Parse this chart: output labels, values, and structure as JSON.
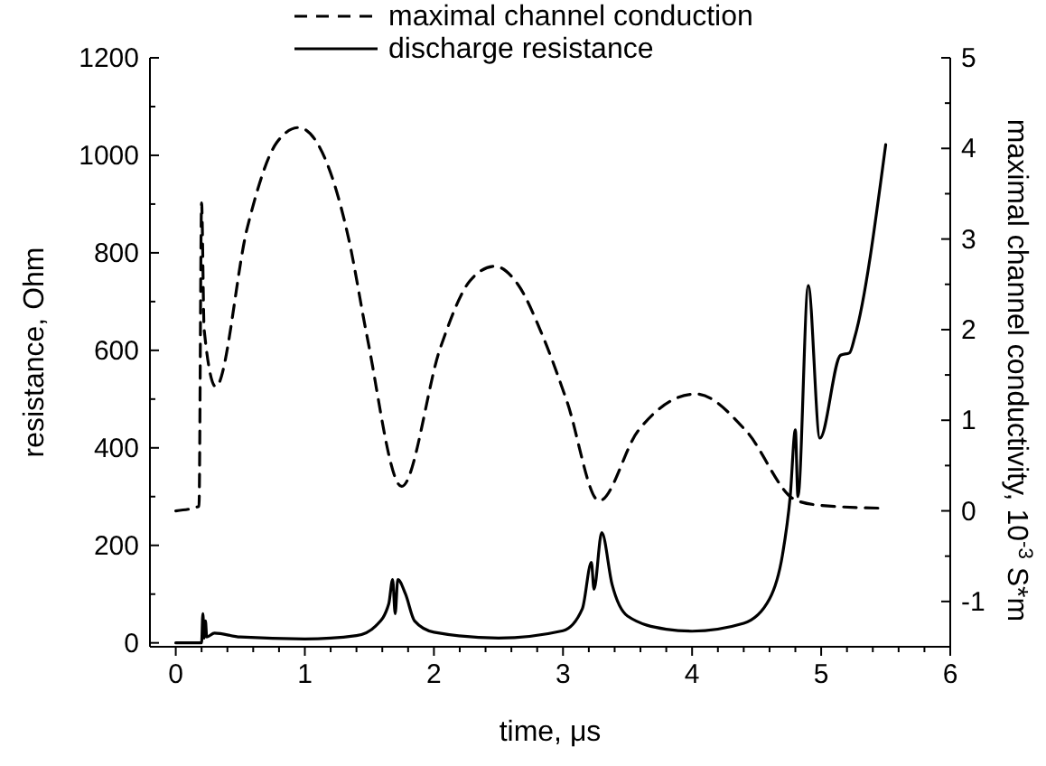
{
  "chart_data": {
    "type": "line",
    "xlabel": "time, μs",
    "ylabel": "resistance, Ohm",
    "y2label": "maximal channel conductivity, 10$^{-3}$ S*m",
    "legend": "top",
    "grid": false,
    "xlim": [
      -0.2,
      6
    ],
    "xticks": [
      0,
      {
        "value": 0.2,
        "label": null
      },
      {
        "value": 0.4,
        "label": null
      },
      {
        "value": 0.6,
        "label": null
      },
      {
        "value": 0.8,
        "label": null
      },
      1,
      {
        "value": 1.2,
        "label": null
      },
      {
        "value": 1.4,
        "label": null
      },
      {
        "value": 1.6,
        "label": null
      },
      {
        "value": 1.8,
        "label": null
      },
      2,
      {
        "value": 2.2,
        "label": null
      },
      {
        "value": 2.4,
        "label": null
      },
      {
        "value": 2.6,
        "label": null
      },
      {
        "value": 2.8,
        "label": null
      },
      3,
      {
        "value": 3.2,
        "label": null
      },
      {
        "value": 3.4,
        "label": null
      },
      {
        "value": 3.6,
        "label": null
      },
      {
        "value": 3.8,
        "label": null
      },
      4,
      {
        "value": 4.2,
        "label": null
      },
      {
        "value": 4.4,
        "label": null
      },
      {
        "value": 4.6,
        "label": null
      },
      {
        "value": 4.8,
        "label": null
      },
      5,
      {
        "value": 5.2,
        "label": null
      },
      {
        "value": 5.4,
        "label": null
      },
      {
        "value": 5.6,
        "label": null
      },
      {
        "value": 5.8,
        "label": null
      },
      6
    ],
    "ylim": [
      -8,
      1200
    ],
    "yticks": [
      0,
      {
        "value": 100,
        "label": null
      },
      200,
      {
        "value": 300,
        "label": null
      },
      400,
      {
        "value": 500,
        "label": null
      },
      600,
      {
        "value": 700,
        "label": null
      },
      800,
      {
        "value": 900,
        "label": null
      },
      1000,
      {
        "value": 1100,
        "label": null
      },
      1200
    ],
    "y2lim": [
      -1.5,
      5
    ],
    "y2ticks": [
      -1,
      {
        "value": -0.5,
        "label": null
      },
      0,
      {
        "value": 0.5,
        "label": null
      },
      1,
      {
        "value": 1.5,
        "label": null
      },
      2,
      {
        "value": 2.5,
        "label": null
      },
      3,
      {
        "value": 3.5,
        "label": null
      },
      4,
      {
        "value": 4.5,
        "label": null
      },
      5
    ],
    "series": [
      {
        "name": "maximal channel conduction",
        "color": "#000000",
        "axis": "y2",
        "line_style": "dashed",
        "x": [
          0,
          0.18,
          0.2,
          0.22,
          0.31,
          0.555,
          0.78,
          0.95,
          1.1,
          1.34,
          1.48,
          1.75,
          2.05,
          2.28,
          2.47,
          2.65,
          2.84,
          3.03,
          3.28,
          3.58,
          4.03,
          4.42,
          4.8,
          5.0,
          5.45
        ],
        "values": [
          0,
          0.05,
          3.4,
          2.0,
          1.37,
          3.13,
          4.06,
          4.23,
          4.05,
          3.0,
          1.94,
          0.27,
          1.8,
          2.54,
          2.7,
          2.5,
          1.94,
          1.21,
          0.11,
          0.88,
          1.29,
          0.88,
          0.12,
          0.06,
          0.03
        ]
      },
      {
        "name": "discharge resistance",
        "color": "#000000",
        "axis": "y",
        "line_style": "solid",
        "x": [
          0,
          0.2,
          0.21,
          0.22,
          0.23,
          0.24,
          0.3,
          0.5,
          1.0,
          1.4,
          1.55,
          1.65,
          1.68,
          1.7,
          1.72,
          1.78,
          1.85,
          2.0,
          2.5,
          3.0,
          3.15,
          3.22,
          3.24,
          3.3,
          3.38,
          3.5,
          3.8,
          4.0,
          4.4,
          4.6,
          4.7,
          4.76,
          4.8,
          4.82,
          4.9,
          4.99,
          5.15,
          5.22,
          5.26,
          5.5
        ],
        "values": [
          0,
          0,
          60,
          10,
          45,
          12,
          20,
          12,
          8,
          15,
          35,
          80,
          130,
          60,
          130,
          100,
          45,
          22,
          10,
          25,
          70,
          165,
          110,
          226,
          120,
          55,
          28,
          24,
          40,
          90,
          180,
          300,
          437,
          300,
          733,
          420,
          590,
          595,
          627,
          1022
        ]
      }
    ]
  }
}
